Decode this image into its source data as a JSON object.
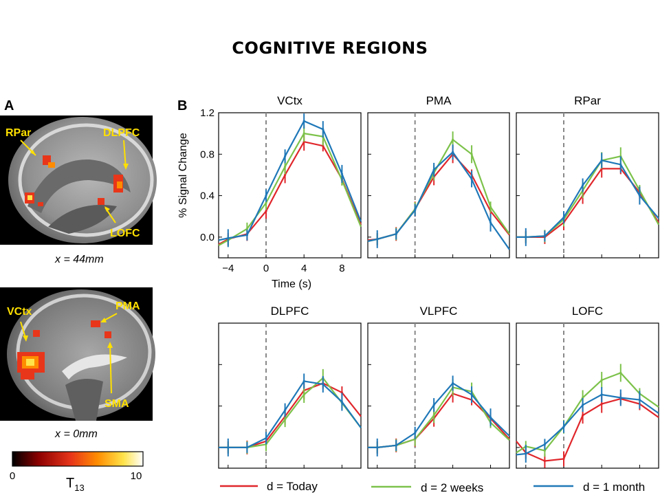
{
  "slide_title": "COGNITIVE REGIONS",
  "panel_a": {
    "letter": "A",
    "brain_top": {
      "labels": [
        "RPar",
        "DLPFC",
        "LOFC"
      ],
      "caption": "x = 44mm"
    },
    "brain_bottom": {
      "labels": [
        "VCtx",
        "PMA",
        "SMA"
      ],
      "caption": "x = 0mm"
    },
    "colorbar": {
      "min_label": "0",
      "max_label": "10",
      "stat_label": "T",
      "stat_sub": "13",
      "colors": [
        "#000000",
        "#8b0000",
        "#e8361a",
        "#ff8c00",
        "#ffe34a",
        "#ffffff"
      ]
    }
  },
  "panel_b": {
    "letter": "B",
    "ylabel": "% Signal Change",
    "xlabel": "Time (s)",
    "legend": [
      {
        "label": "d = Today",
        "color": "#e0262b"
      },
      {
        "label": "d = 2 weeks",
        "color": "#7cc24a"
      },
      {
        "label": "d = 1 month",
        "color": "#1f78b8"
      }
    ]
  },
  "chart_data": {
    "type": "line",
    "x": [
      -5,
      -4,
      -2,
      0,
      2,
      4,
      6,
      8,
      10
    ],
    "x_ticks": [
      "-4",
      "0",
      "4",
      "8"
    ],
    "y_ticks": [
      "0.0",
      "0.4",
      "0.8",
      "1.2"
    ],
    "xlim": [
      -5,
      10
    ],
    "ylim": [
      -0.2,
      1.2
    ],
    "onset_x": 0,
    "panels": [
      {
        "title": "VCtx",
        "series": [
          {
            "name": "d = Today",
            "values": [
              -0.07,
              -0.02,
              0.03,
              0.25,
              0.6,
              0.92,
              0.88,
              0.56,
              0.12
            ]
          },
          {
            "name": "d = 2 weeks",
            "values": [
              -0.08,
              -0.03,
              0.08,
              0.33,
              0.68,
              1.0,
              0.97,
              0.55,
              0.1
            ]
          },
          {
            "name": "d = 1 month",
            "values": [
              -0.03,
              -0.01,
              0.02,
              0.4,
              0.78,
              1.12,
              1.04,
              0.61,
              0.15
            ]
          }
        ]
      },
      {
        "title": "PMA",
        "series": [
          {
            "name": "d = Today",
            "values": [
              -0.03,
              -0.02,
              0.03,
              0.27,
              0.58,
              0.8,
              0.6,
              0.25,
              0.02
            ]
          },
          {
            "name": "d = 2 weeks",
            "values": [
              -0.04,
              -0.02,
              0.03,
              0.27,
              0.62,
              0.94,
              0.8,
              0.29,
              0.03
            ]
          },
          {
            "name": "d = 1 month",
            "values": [
              -0.04,
              -0.02,
              0.03,
              0.26,
              0.65,
              0.82,
              0.56,
              0.14,
              -0.12
            ]
          }
        ]
      },
      {
        "title": "RPar",
        "series": [
          {
            "name": "d = Today",
            "values": [
              0.0,
              0.0,
              0.0,
              0.14,
              0.4,
              0.66,
              0.66,
              0.43,
              0.14
            ]
          },
          {
            "name": "d = 2 weeks",
            "values": [
              0.0,
              0.0,
              0.01,
              0.17,
              0.45,
              0.74,
              0.78,
              0.45,
              0.12
            ]
          },
          {
            "name": "d = 1 month",
            "values": [
              0.0,
              0.0,
              0.01,
              0.19,
              0.5,
              0.74,
              0.7,
              0.4,
              0.18
            ]
          }
        ]
      },
      {
        "title": "DLPFC",
        "series": [
          {
            "name": "d = Today",
            "values": [
              0.0,
              0.0,
              0.0,
              0.06,
              0.3,
              0.55,
              0.62,
              0.53,
              0.3
            ]
          },
          {
            "name": "d = 2 weeks",
            "values": [
              0.0,
              0.0,
              0.0,
              0.03,
              0.27,
              0.51,
              0.67,
              0.43,
              0.19
            ]
          },
          {
            "name": "d = 1 month",
            "values": [
              0.0,
              0.0,
              0.0,
              0.09,
              0.36,
              0.64,
              0.61,
              0.44,
              0.19
            ]
          }
        ]
      },
      {
        "title": "VLPFC",
        "series": [
          {
            "name": "d = Today",
            "values": [
              0.0,
              0.0,
              0.02,
              0.08,
              0.28,
              0.52,
              0.46,
              0.28,
              0.08
            ]
          },
          {
            "name": "d = 2 weeks",
            "values": [
              0.0,
              0.0,
              0.02,
              0.08,
              0.31,
              0.58,
              0.54,
              0.24,
              0.07
            ]
          },
          {
            "name": "d = 1 month",
            "values": [
              0.0,
              0.0,
              0.02,
              0.14,
              0.41,
              0.62,
              0.51,
              0.29,
              0.11
            ]
          }
        ]
      },
      {
        "title": "LOFC",
        "series": [
          {
            "name": "d = Today",
            "values": [
              0.06,
              -0.05,
              -0.13,
              -0.11,
              0.31,
              0.42,
              0.47,
              0.42,
              0.29
            ]
          },
          {
            "name": "d = 2 weeks",
            "values": [
              -0.05,
              0.01,
              -0.03,
              0.2,
              0.48,
              0.65,
              0.72,
              0.52,
              0.39
            ]
          },
          {
            "name": "d = 1 month",
            "values": [
              -0.07,
              -0.06,
              0.03,
              0.2,
              0.41,
              0.51,
              0.48,
              0.46,
              0.33
            ]
          }
        ]
      }
    ]
  }
}
